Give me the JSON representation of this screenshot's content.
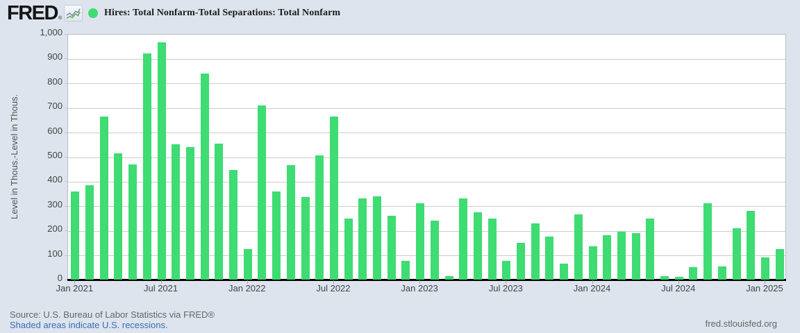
{
  "header": {
    "brand": "FRED",
    "brand_reg": "®",
    "legend_label": "Hires: Total Nonfarm-Total Separations: Total Nonfarm"
  },
  "colors": {
    "bar": "#3edc72",
    "background": "#dde4ee",
    "plot_background": "#ffffff",
    "gridline": "#cccccc",
    "axis": "#000000",
    "link": "#3b6cb4",
    "text_muted": "#666666"
  },
  "chart_data": {
    "type": "bar",
    "title": "Hires: Total Nonfarm-Total Separations: Total Nonfarm",
    "xlabel": "",
    "ylabel": "Level in Thous.-Level in Thous.",
    "ylim": [
      0,
      1000
    ],
    "y_tick_interval": 100,
    "y_tick_values": [
      0,
      100,
      200,
      300,
      400,
      500,
      600,
      700,
      800,
      900,
      1000
    ],
    "y_tick_labels": [
      "0",
      "100",
      "200",
      "300",
      "400",
      "500",
      "600",
      "700",
      "800",
      "900",
      "1,000"
    ],
    "grid": true,
    "legend_position": "top",
    "categories": [
      "Jan 2021",
      "Feb 2021",
      "Mar 2021",
      "Apr 2021",
      "May 2021",
      "Jun 2021",
      "Jul 2021",
      "Aug 2021",
      "Sep 2021",
      "Oct 2021",
      "Nov 2021",
      "Dec 2021",
      "Jan 2022",
      "Feb 2022",
      "Mar 2022",
      "Apr 2022",
      "May 2022",
      "Jun 2022",
      "Jul 2022",
      "Aug 2022",
      "Sep 2022",
      "Oct 2022",
      "Nov 2022",
      "Dec 2022",
      "Jan 2023",
      "Feb 2023",
      "Mar 2023",
      "Apr 2023",
      "May 2023",
      "Jun 2023",
      "Jul 2023",
      "Aug 2023",
      "Sep 2023",
      "Oct 2023",
      "Nov 2023",
      "Dec 2023",
      "Jan 2024",
      "Feb 2024",
      "Mar 2024",
      "Apr 2024",
      "May 2024",
      "Jun 2024",
      "Jul 2024",
      "Aug 2024",
      "Sep 2024",
      "Oct 2024",
      "Nov 2024",
      "Dec 2024",
      "Jan 2025",
      "Feb 2025"
    ],
    "values": [
      360,
      385,
      665,
      515,
      470,
      920,
      965,
      550,
      540,
      840,
      555,
      445,
      125,
      710,
      360,
      465,
      335,
      505,
      665,
      250,
      330,
      340,
      260,
      75,
      310,
      240,
      15,
      330,
      275,
      250,
      75,
      150,
      230,
      175,
      65,
      265,
      135,
      180,
      195,
      190,
      250,
      15,
      10,
      50,
      310,
      55,
      210,
      280,
      90,
      125
    ],
    "x_tick_labels": [
      "Jan 2021",
      "Jul 2021",
      "Jan 2022",
      "Jul 2022",
      "Jan 2023",
      "Jul 2023",
      "Jan 2024",
      "Jul 2024",
      "Jan 2025"
    ],
    "x_tick_indices": [
      0,
      6,
      12,
      18,
      24,
      30,
      36,
      42,
      48
    ]
  },
  "footer": {
    "source": "Source: U.S. Bureau of Labor Statistics via FRED®",
    "recession_note": "Shaded areas indicate U.S. recessions.",
    "site": "fred.stlouisfed.org"
  }
}
